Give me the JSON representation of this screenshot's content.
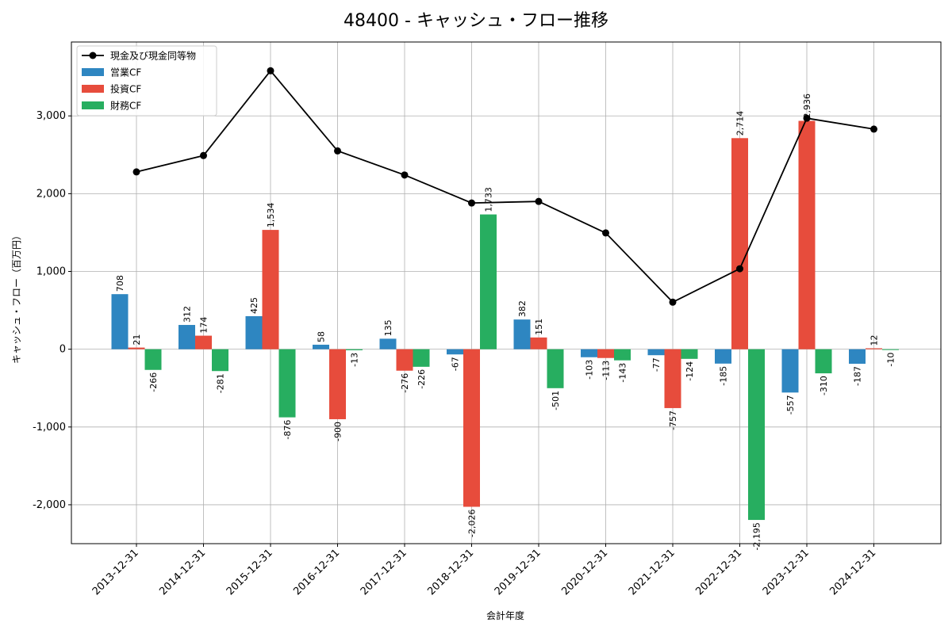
{
  "chart_data": {
    "type": "bar",
    "title": "48400 - キャッシュ・フロー推移",
    "xlabel": "会計年度",
    "ylabel": "キャッシュ・フロー（百万円）",
    "ylim": [
      -2500,
      3950
    ],
    "yticks": [
      -2000,
      -1000,
      0,
      1000,
      2000,
      3000
    ],
    "ytick_labels": [
      "-2,000",
      "-1,000",
      "0",
      "1,000",
      "2,000",
      "3,000"
    ],
    "grid": true,
    "legend_position": "top-left",
    "categories": [
      "2013-12-31",
      "2014-12-31",
      "2015-12-31",
      "2016-12-31",
      "2017-12-31",
      "2018-12-31",
      "2019-12-31",
      "2020-12-31",
      "2021-12-31",
      "2022-12-31",
      "2023-12-31",
      "2024-12-31"
    ],
    "series": [
      {
        "name": "営業CF",
        "type": "bar",
        "color": "#2e86c1",
        "values": [
          708,
          312,
          425,
          58,
          135,
          -67,
          382,
          -103,
          -77,
          -185,
          -557,
          -187
        ],
        "labels": [
          "708",
          "312",
          "425",
          "58",
          "135",
          "-67",
          "382",
          "-103",
          "-77",
          "-185",
          "-557",
          "-187"
        ]
      },
      {
        "name": "投資CF",
        "type": "bar",
        "color": "#e74c3c",
        "values": [
          21,
          174,
          1534,
          -900,
          -276,
          -2026,
          151,
          -113,
          -757,
          2714,
          2936,
          12
        ],
        "labels": [
          "21",
          "174",
          "1,534",
          "-900",
          "-276",
          "-2,026",
          "151",
          "-113",
          "-757",
          "2,714",
          "2,936",
          "12"
        ]
      },
      {
        "name": "財務CF",
        "type": "bar",
        "color": "#27ae60",
        "values": [
          -266,
          -281,
          -876,
          -13,
          -226,
          1733,
          -501,
          -143,
          -124,
          -2195,
          -310,
          -10
        ],
        "labels": [
          "-266",
          "-281",
          "-876",
          "-13",
          "-226",
          "1,733",
          "-501",
          "-143",
          "-124",
          "-2,195",
          "-310",
          "-10"
        ]
      },
      {
        "name": "現金及び現金同等物",
        "type": "line",
        "color": "#000000",
        "values": [
          2280,
          2490,
          3580,
          2550,
          2240,
          1880,
          1900,
          1495,
          605,
          1035,
          2970,
          2830
        ]
      }
    ]
  }
}
